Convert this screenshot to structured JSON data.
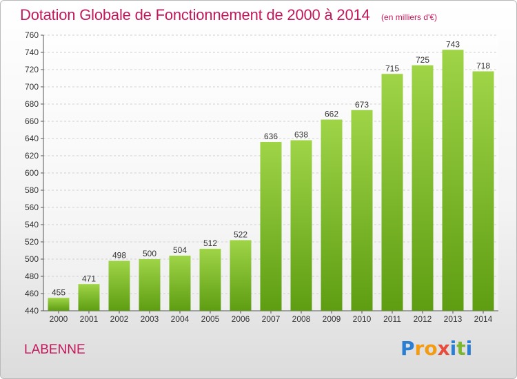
{
  "header": {
    "title": "Dotation Globale de Fonctionnement de 2000 à 2014",
    "unit_note": "(en milliers d'€)"
  },
  "footer": {
    "commune": "LABENNE",
    "logo_text": "Proxiti"
  },
  "colors": {
    "title": "#c2185b",
    "bar_top": "#9fd447",
    "bar_bottom": "#5e9d12",
    "logo_letters": [
      "#2a7fd4",
      "#f39c12",
      "#f39c12",
      "#e74c3c",
      "#2a7fd4",
      "#7cb82f",
      "#2a7fd4"
    ]
  },
  "chart_data": {
    "type": "bar",
    "categories": [
      "2000",
      "2001",
      "2002",
      "2003",
      "2004",
      "2005",
      "2006",
      "2007",
      "2008",
      "2009",
      "2010",
      "2011",
      "2012",
      "2013",
      "2014"
    ],
    "values": [
      455,
      471,
      498,
      500,
      504,
      512,
      522,
      636,
      638,
      662,
      673,
      715,
      725,
      743,
      718
    ],
    "data_labels": [
      "455",
      "471",
      "498",
      "500",
      "504",
      "512",
      "522",
      "636",
      "638",
      "662",
      "673",
      "715",
      "725",
      "743",
      "718"
    ],
    "title": "Dotation Globale de Fonctionnement de 2000 à 2014",
    "subtitle": "(en milliers d'€)",
    "xlabel": "",
    "ylabel": "",
    "ylim": [
      440,
      760
    ],
    "yticks": [
      440,
      460,
      480,
      500,
      520,
      540,
      560,
      580,
      600,
      620,
      640,
      660,
      680,
      700,
      720,
      740,
      760
    ],
    "grid": true,
    "legend": "none"
  }
}
